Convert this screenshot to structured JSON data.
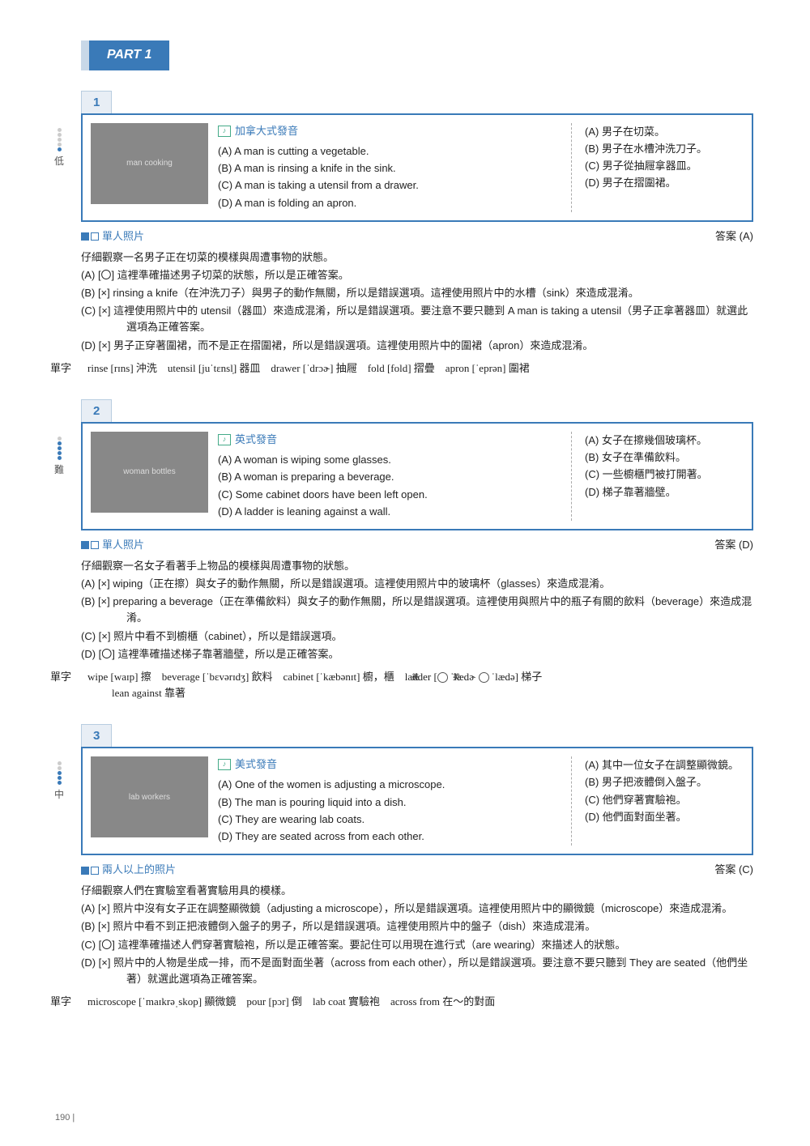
{
  "part_label": "PART 1",
  "page_number": "190",
  "questions": [
    {
      "num": "1",
      "difficulty_label": "低",
      "difficulty_level": 1,
      "accent": "加拿大式發音",
      "img_alt": "man cooking",
      "opts_en": [
        "(A) A man is cutting a vegetable.",
        "(B) A man is rinsing a knife in the sink.",
        "(C) A man is taking a utensil from a drawer.",
        "(D) A man is folding an apron."
      ],
      "opts_zh": [
        "(A) 男子在切菜。",
        "(B) 男子在水槽沖洗刀子。",
        "(C) 男子從抽屜拿器皿。",
        "(D) 男子在摺圍裙。"
      ],
      "tag": "單人照片",
      "answer": "答案 (A)",
      "intro": "仔細觀察一名男子正在切菜的模樣與周遭事物的狀態。",
      "items": [
        "(A) [〇] 這裡準確描述男子切菜的狀態，所以是正確答案。",
        "(B) [×] rinsing a knife（在沖洗刀子）與男子的動作無關，所以是錯誤選項。這裡使用照片中的水槽（sink）來造成混淆。",
        "(C) [×] 這裡使用照片中的 utensil（器皿）來造成混淆，所以是錯誤選項。要注意不要只聽到 A man is taking a utensil（男子正拿著器皿）就選此選項為正確答案。",
        "(D) [×] 男子正穿著圍裙，而不是正在摺圍裙，所以是錯誤選項。這裡使用照片中的圍裙（apron）來造成混淆。"
      ],
      "vocab_label": "單字",
      "vocab": "rinse [rɪns] 沖洗 utensil [juˈtɛnsl̩] 器皿 drawer [ˈdrɔɚ] 抽屜 fold [fold] 摺疊 apron [ˈeprən] 圍裙"
    },
    {
      "num": "2",
      "difficulty_label": "難",
      "difficulty_level": 4,
      "accent": "英式發音",
      "img_alt": "woman bottles",
      "opts_en": [
        "(A) A woman is wiping some glasses.",
        "(B) A woman is preparing a beverage.",
        "(C) Some cabinet doors have been left open.",
        "(D) A ladder is leaning against a wall."
      ],
      "opts_zh": [
        "(A) 女子在擦幾個玻璃杯。",
        "(B) 女子在準備飲料。",
        "(C) 一些櫥櫃門被打開著。",
        "(D) 梯子靠著牆壁。"
      ],
      "tag": "單人照片",
      "answer": "答案 (D)",
      "intro": "仔細觀察一名女子看著手上物品的模樣與周遭事物的狀態。",
      "items": [
        "(A) [×] wiping（正在擦）與女子的動作無關，所以是錯誤選項。這裡使用照片中的玻璃杯（glasses）來造成混淆。",
        "(B) [×] preparing a beverage（正在準備飲料）與女子的動作無關，所以是錯誤選項。這裡使用與照片中的瓶子有關的飲料（beverage）來造成混淆。",
        "(C) [×] 照片中看不到櫥櫃（cabinet），所以是錯誤選項。",
        "(D) [〇] 這裡準確描述梯子靠著牆壁，所以是正確答案。"
      ],
      "vocab_label": "單字",
      "vocab": "wipe [waɪp] 擦 beverage [ˈbɛvərɪdʒ] 飲料 cabinet [ˈkæbənɪt] 櫥，櫃 ladder [美 ˈlædɚ 英 ˈlædə] 梯子 \nlean against 靠著"
    },
    {
      "num": "3",
      "difficulty_label": "中",
      "difficulty_level": 3,
      "accent": "美式發音",
      "img_alt": "lab workers",
      "opts_en": [
        "(A) One of the women is adjusting a microscope.",
        "(B) The man is pouring liquid into a dish.",
        "(C) They are wearing lab coats.",
        "(D) They are seated across from each other."
      ],
      "opts_zh": [
        "(A) 其中一位女子在調整顯微鏡。",
        "(B) 男子把液體倒入盤子。",
        "(C) 他們穿著實驗袍。",
        "(D) 他們面對面坐著。"
      ],
      "tag": "兩人以上的照片",
      "answer": "答案 (C)",
      "intro": "仔細觀察人們在實驗室看著實驗用具的模樣。",
      "items": [
        "(A) [×] 照片中沒有女子正在調整顯微鏡（adjusting a microscope），所以是錯誤選項。這裡使用照片中的顯微鏡（microscope）來造成混淆。",
        "(B) [×] 照片中看不到正把液體倒入盤子的男子，所以是錯誤選項。這裡使用照片中的盤子（dish）來造成混淆。",
        "(C) [〇] 這裡準確描述人們穿著實驗袍，所以是正確答案。要記住可以用現在進行式（are wearing）來描述人的狀態。",
        "(D) [×] 照片中的人物是坐成一排，而不是面對面坐著（across from each other），所以是錯誤選項。要注意不要只聽到 They are seated（他們坐著）就選此選項為正確答案。"
      ],
      "vocab_label": "單字",
      "vocab": "microscope [ˈmaɪkrəˌskop] 顯微鏡 pour [pɔr] 倒 lab coat 實驗袍 across from 在～的對面"
    }
  ],
  "colors": {
    "brand": "#3a7ab8",
    "box_border": "#3a7ab8",
    "tab_bg": "#e8eef5",
    "page_bg": "#ffffff"
  }
}
